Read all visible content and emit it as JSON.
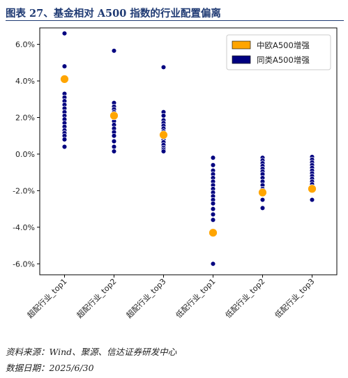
{
  "header": {
    "caption": "图表 27、基金相对 A500 指数的行业配置偏离"
  },
  "footer": {
    "source": "资料来源：Wind、聚源、信达证券研发中心",
    "date": "数据日期：2025/6/30"
  },
  "chart_data": {
    "type": "scatter",
    "categories": [
      "超配行业_top1",
      "超配行业_top2",
      "超配行业_top3",
      "低配行业_top1",
      "低配行业_top2",
      "低配行业_top3"
    ],
    "ylim": [
      -6.6,
      6.9
    ],
    "yticks": [
      6.0,
      4.0,
      2.0,
      0.0,
      -2.0,
      -4.0,
      -6.0
    ],
    "ytick_labels": [
      "6.0%",
      "4.0%",
      "2.0%",
      "0.0%",
      "-2.0%",
      "-4.0%",
      "-6.0%"
    ],
    "grid": false,
    "legend_position": "top-right",
    "series": [
      {
        "name": "中欧A500增强",
        "color": "#ffa500",
        "values": [
          4.1,
          2.1,
          1.05,
          -4.3,
          -2.1,
          -1.9
        ]
      },
      {
        "name": "同类A500增强",
        "color": "#000080",
        "points": [
          [
            6.6,
            4.8,
            3.3,
            3.1,
            2.9,
            2.7,
            2.5,
            2.3,
            2.1,
            1.9,
            1.7,
            1.5,
            1.3,
            1.15,
            1.0,
            0.8,
            0.4
          ],
          [
            5.65,
            2.8,
            2.6,
            2.45,
            2.3,
            2.2,
            2.0,
            1.8,
            1.6,
            1.4,
            1.2,
            1.0,
            0.7,
            0.4,
            0.15
          ],
          [
            4.75,
            2.3,
            2.1,
            1.85,
            1.7,
            1.55,
            1.4,
            1.25,
            1.15,
            0.95,
            0.8,
            0.65,
            0.5,
            0.35,
            0.25,
            0.15
          ],
          [
            -0.2,
            -0.6,
            -0.9,
            -1.1,
            -1.3,
            -1.5,
            -1.7,
            -1.9,
            -2.1,
            -2.3,
            -2.5,
            -2.7,
            -3.0,
            -3.3,
            -3.6,
            -6.0
          ],
          [
            -0.2,
            -0.35,
            -0.5,
            -0.65,
            -0.8,
            -0.95,
            -1.1,
            -1.3,
            -1.5,
            -1.7,
            -1.9,
            -2.2,
            -2.5,
            -2.95
          ],
          [
            -0.15,
            -0.3,
            -0.45,
            -0.6,
            -0.75,
            -0.9,
            -1.05,
            -1.2,
            -1.35,
            -1.5,
            -1.65,
            -1.8,
            -2.5
          ]
        ]
      }
    ]
  }
}
